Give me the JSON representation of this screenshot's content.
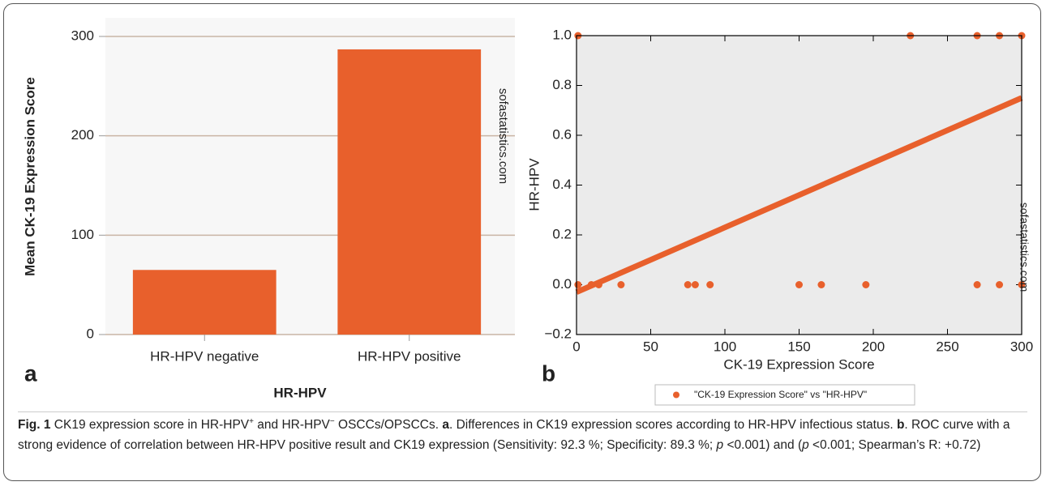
{
  "chart_data": [
    {
      "type": "bar",
      "panel_label": "a",
      "watermark": "sofastatistics.com",
      "y_label": "Mean CK-19 Expression Score",
      "x_label": "HR-HPV",
      "categories": [
        "HR-HPV negative",
        "HR-HPV positive"
      ],
      "values": [
        65,
        287
      ],
      "color": "#e8602c",
      "ylim": [
        0,
        300
      ],
      "yticks": [
        0,
        100,
        200,
        300
      ],
      "grid": true
    },
    {
      "type": "scatter",
      "panel_label": "b",
      "watermark": "sofastatistics.com",
      "y_label": "HR-HPV",
      "x_label": "CK-19 Expression Score",
      "series": [
        {
          "name": "\"CK-19 Expression Score\" vs \"HR-HPV\"",
          "color": "#e8602c",
          "x": [
            1,
            225,
            270,
            285,
            300,
            1,
            10,
            15,
            30,
            75,
            80,
            90,
            150,
            165,
            195,
            270,
            285,
            300
          ],
          "y": [
            1,
            1,
            1,
            1,
            1,
            0,
            0,
            0,
            0,
            0,
            0,
            0,
            0,
            0,
            0,
            0,
            0,
            0
          ]
        }
      ],
      "fit_line": {
        "x": [
          0,
          300
        ],
        "y": [
          -0.03,
          0.75
        ]
      },
      "xlim": [
        0,
        300
      ],
      "xticks": [
        0,
        50,
        100,
        150,
        200,
        250,
        300
      ],
      "ylim": [
        -0.2,
        1.0
      ],
      "yticks": [
        {
          "value": -0.2,
          "label": "−0.2"
        },
        {
          "value": 0,
          "label": "0.0"
        },
        0.2,
        0.4,
        0.6,
        0.8,
        {
          "value": 1.0,
          "label": "1.0"
        }
      ],
      "legend": "bottom"
    }
  ],
  "caption": {
    "segments": [
      {
        "text": "Fig. 1",
        "style": "bold"
      },
      {
        "text": " CK19 expression score in HR-HPV",
        "style": "normal"
      },
      {
        "text": "+",
        "style": "sup"
      },
      {
        "text": " and HR-HPV",
        "style": "normal"
      },
      {
        "text": "−",
        "style": "sup"
      },
      {
        "text": " OSCCs/OPSCCs. ",
        "style": "normal"
      },
      {
        "text": "a",
        "style": "bold"
      },
      {
        "text": ". Differences in CK19 expression scores according to HR-HPV infectious status. ",
        "style": "normal"
      },
      {
        "text": "b",
        "style": "bold"
      },
      {
        "text": ". ROC curve with a strong evidence of correlation between HR-HPV positive result and CK19 expression (Sensitivity: 92.3 %; Specificity: 89.3 %; ",
        "style": "normal"
      },
      {
        "text": "p",
        "style": "italic"
      },
      {
        "text": " <0.001) and (",
        "style": "normal"
      },
      {
        "text": "p",
        "style": "italic"
      },
      {
        "text": " <0.001; Spearman’s R: +0.72)",
        "style": "normal"
      }
    ]
  }
}
